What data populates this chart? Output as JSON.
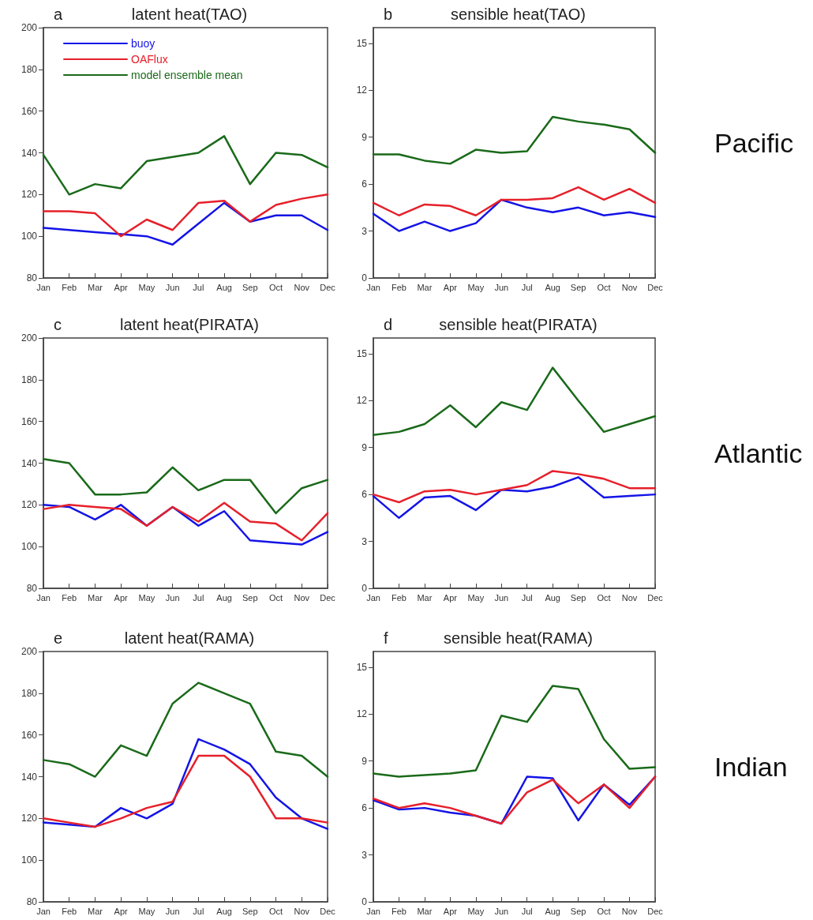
{
  "chart_data": [
    {
      "type": "line",
      "title": "latent heat(TAO)",
      "subtitle": "a",
      "categories": [
        "Jan",
        "Feb",
        "Mar",
        "Apr",
        "May",
        "Jun",
        "Jul",
        "Aug",
        "Sep",
        "Oct",
        "Nov",
        "Dec"
      ],
      "ylim": [
        80,
        200
      ],
      "yticks": [
        80,
        100,
        120,
        140,
        160,
        180,
        200
      ],
      "grid": false,
      "legend": "top left",
      "marker": "none",
      "line_style": "solid",
      "series": [
        {
          "name": "buoy",
          "color": "#1414e6",
          "values": [
            104,
            103,
            102,
            101,
            100,
            96,
            106,
            116,
            107,
            110,
            110,
            103
          ]
        },
        {
          "name": "OAFlux",
          "color": "#e6202a",
          "values": [
            112,
            112,
            111,
            100,
            108,
            103,
            116,
            117,
            107,
            115,
            118,
            120
          ]
        },
        {
          "name": "model ensemble mean",
          "color": "#1a6a1a",
          "values": [
            139,
            120,
            125,
            123,
            136,
            138,
            140,
            148,
            125,
            140,
            139,
            133
          ]
        }
      ]
    },
    {
      "type": "line",
      "title": "sensible heat(TAO)",
      "subtitle": "b",
      "annotations": [
        "Pacific"
      ],
      "categories": [
        "Jan",
        "Feb",
        "Mar",
        "Apr",
        "May",
        "Jun",
        "Jul",
        "Aug",
        "Sep",
        "Oct",
        "Nov",
        "Dec"
      ],
      "ylim": [
        0,
        16
      ],
      "yticks": [
        0,
        3,
        6,
        9,
        12,
        15
      ],
      "grid": false,
      "marker": "none",
      "line_style": "solid",
      "series": [
        {
          "color": "#1414e6",
          "values": [
            4.1,
            3.0,
            3.6,
            3.0,
            3.5,
            5.0,
            4.5,
            4.2,
            4.5,
            4.0,
            4.2,
            3.9
          ]
        },
        {
          "color": "#e6202a",
          "values": [
            4.8,
            4.0,
            4.7,
            4.6,
            4.0,
            5.0,
            5.0,
            5.1,
            5.8,
            5.0,
            5.7,
            4.8
          ]
        },
        {
          "color": "#1a6a1a",
          "values": [
            7.9,
            7.9,
            7.5,
            7.3,
            8.2,
            8.0,
            8.1,
            10.3,
            10.0,
            9.8,
            9.5,
            8.0
          ]
        }
      ]
    },
    {
      "type": "line",
      "title": "latent heat(PIRATA)",
      "subtitle": "c",
      "categories": [
        "Jan",
        "Feb",
        "Mar",
        "Apr",
        "May",
        "Jun",
        "Jul",
        "Aug",
        "Sep",
        "Oct",
        "Nov",
        "Dec"
      ],
      "ylim": [
        80,
        200
      ],
      "yticks": [
        80,
        100,
        120,
        140,
        160,
        180,
        200
      ],
      "grid": false,
      "marker": "none",
      "line_style": "solid",
      "series": [
        {
          "color": "#1414e6",
          "values": [
            120,
            119,
            113,
            120,
            110,
            119,
            110,
            117,
            103,
            102,
            101,
            107
          ]
        },
        {
          "color": "#e6202a",
          "values": [
            118,
            120,
            119,
            118,
            110,
            119,
            112,
            121,
            112,
            111,
            103,
            116
          ]
        },
        {
          "color": "#1a6a1a",
          "values": [
            142,
            140,
            125,
            125,
            126,
            138,
            127,
            132,
            132,
            116,
            128,
            132
          ]
        }
      ]
    },
    {
      "type": "line",
      "title": "sensible heat(PIRATA)",
      "subtitle": "d",
      "annotations": [
        "Atlantic"
      ],
      "categories": [
        "Jan",
        "Feb",
        "Mar",
        "Apr",
        "May",
        "Jun",
        "Jul",
        "Aug",
        "Sep",
        "Oct",
        "Nov",
        "Dec"
      ],
      "ylim": [
        0,
        16
      ],
      "yticks": [
        0,
        3,
        6,
        9,
        12,
        15
      ],
      "grid": false,
      "marker": "none",
      "line_style": "solid",
      "series": [
        {
          "color": "#1414e6",
          "values": [
            5.9,
            4.5,
            5.8,
            5.9,
            5.0,
            6.3,
            6.2,
            6.5,
            7.1,
            5.8,
            5.9,
            6.0
          ]
        },
        {
          "color": "#e6202a",
          "values": [
            6.0,
            5.5,
            6.2,
            6.3,
            6.0,
            6.3,
            6.6,
            7.5,
            7.3,
            7.0,
            6.4,
            6.4
          ]
        },
        {
          "color": "#1a6a1a",
          "values": [
            9.8,
            10.0,
            10.5,
            11.7,
            10.3,
            11.9,
            11.4,
            14.1,
            12.0,
            10.0,
            10.5,
            11.0
          ]
        }
      ]
    },
    {
      "type": "line",
      "title": "latent heat(RAMA)",
      "subtitle": "e",
      "categories": [
        "Jan",
        "Feb",
        "Mar",
        "Apr",
        "May",
        "Jun",
        "Jul",
        "Aug",
        "Sep",
        "Oct",
        "Nov",
        "Dec"
      ],
      "ylim": [
        80,
        200
      ],
      "yticks": [
        80,
        100,
        120,
        140,
        160,
        180,
        200
      ],
      "grid": false,
      "marker": "none",
      "line_style": "solid",
      "series": [
        {
          "color": "#1414e6",
          "values": [
            118,
            117,
            116,
            125,
            120,
            127,
            158,
            153,
            146,
            130,
            120,
            115
          ]
        },
        {
          "color": "#e6202a",
          "values": [
            120,
            118,
            116,
            120,
            125,
            128,
            150,
            150,
            140,
            120,
            120,
            118
          ]
        },
        {
          "color": "#1a6a1a",
          "values": [
            148,
            146,
            140,
            155,
            150,
            175,
            185,
            180,
            175,
            152,
            150,
            140
          ]
        }
      ]
    },
    {
      "type": "line",
      "title": "sensible heat(RAMA)",
      "subtitle": "f",
      "annotations": [
        "Indian"
      ],
      "categories": [
        "Jan",
        "Feb",
        "Mar",
        "Apr",
        "May",
        "Jun",
        "Jul",
        "Aug",
        "Sep",
        "Oct",
        "Nov",
        "Dec"
      ],
      "ylim": [
        0,
        16
      ],
      "yticks": [
        0,
        3,
        6,
        9,
        12,
        15
      ],
      "grid": false,
      "marker": "none",
      "line_style": "solid",
      "series": [
        {
          "color": "#1414e6",
          "values": [
            6.5,
            5.9,
            6.0,
            5.7,
            5.5,
            5.0,
            8.0,
            7.9,
            5.2,
            7.5,
            6.2,
            8.0
          ]
        },
        {
          "color": "#e6202a",
          "values": [
            6.6,
            6.0,
            6.3,
            6.0,
            5.5,
            5.0,
            7.0,
            7.8,
            6.3,
            7.5,
            6.0,
            8.0
          ]
        },
        {
          "color": "#1a6a1a",
          "values": [
            8.2,
            8.0,
            8.1,
            8.2,
            8.4,
            11.9,
            11.5,
            13.8,
            13.6,
            10.4,
            8.5,
            8.6
          ]
        }
      ]
    }
  ]
}
